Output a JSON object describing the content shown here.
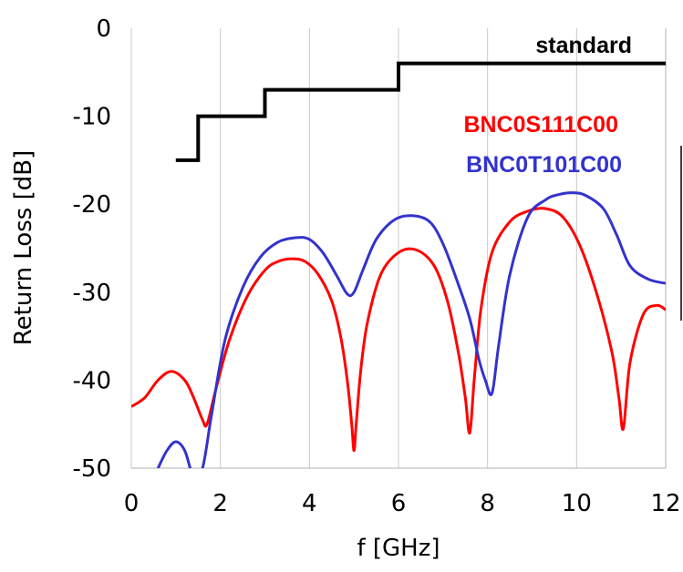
{
  "chart_data": {
    "type": "line",
    "xlabel": "f [GHz]",
    "ylabel": "Return Loss [dB]",
    "xlim": [
      0,
      12
    ],
    "ylim": [
      -50,
      0
    ],
    "x_ticks": [
      "0",
      "2",
      "4",
      "6",
      "8",
      "10",
      "12"
    ],
    "y_ticks": [
      "0",
      "-10",
      "-20",
      "-30",
      "-40",
      "-50"
    ],
    "grid": "vertical",
    "series": [
      {
        "name": "standard",
        "color": "#000000",
        "step": true,
        "x": [
          1.0,
          1.5,
          1.5,
          3.0,
          3.0,
          6.0,
          6.0,
          12.0
        ],
        "y": [
          -15,
          -15,
          -10,
          -10,
          -7,
          -7,
          -4,
          -4
        ]
      },
      {
        "name": "BNC0S111C00",
        "color": "#ff0000",
        "x": [
          0.0,
          0.3,
          0.6,
          0.9,
          1.2,
          1.4,
          1.6,
          1.7,
          1.9,
          2.2,
          2.6,
          3.0,
          3.3,
          3.6,
          3.9,
          4.2,
          4.5,
          4.7,
          4.85,
          4.95,
          5.0,
          5.05,
          5.15,
          5.3,
          5.6,
          6.0,
          6.4,
          6.8,
          7.1,
          7.35,
          7.5,
          7.6,
          7.7,
          7.85,
          8.1,
          8.5,
          8.9,
          9.3,
          9.7,
          10.1,
          10.5,
          10.8,
          10.95,
          11.05,
          11.2,
          11.5,
          11.8,
          12.0
        ],
        "y": [
          -43.0,
          -42.0,
          -40.0,
          -39.0,
          -40.0,
          -42.0,
          -44.5,
          -45.0,
          -41.0,
          -35.5,
          -30.5,
          -27.5,
          -26.5,
          -26.2,
          -26.5,
          -28.0,
          -31.0,
          -35.0,
          -40.0,
          -45.0,
          -48.0,
          -45.0,
          -39.0,
          -33.5,
          -28.0,
          -25.5,
          -25.2,
          -27.0,
          -31.0,
          -37.0,
          -42.0,
          -46.0,
          -40.0,
          -32.0,
          -25.5,
          -22.0,
          -20.8,
          -20.5,
          -21.5,
          -25.0,
          -31.0,
          -37.0,
          -42.0,
          -45.5,
          -38.0,
          -32.5,
          -31.5,
          -32.0
        ]
      },
      {
        "name": "BNC0T101C00",
        "color": "#3333cc",
        "x": [
          0.6,
          0.8,
          1.0,
          1.2,
          1.4,
          1.6,
          1.8,
          2.1,
          2.5,
          2.9,
          3.3,
          3.7,
          4.0,
          4.3,
          4.6,
          4.85,
          5.0,
          5.2,
          5.5,
          5.9,
          6.3,
          6.7,
          7.0,
          7.3,
          7.6,
          7.8,
          7.95,
          8.1,
          8.25,
          8.5,
          8.9,
          9.3,
          9.6,
          9.9,
          10.2,
          10.6,
          10.9,
          11.2,
          11.6,
          12.0
        ],
        "y": [
          -50.0,
          -48.0,
          -47.0,
          -48.0,
          -51.0,
          -50.0,
          -44.0,
          -35.5,
          -29.5,
          -26.0,
          -24.3,
          -23.8,
          -24.0,
          -25.5,
          -28.0,
          -30.2,
          -30.0,
          -27.5,
          -24.0,
          -21.8,
          -21.3,
          -22.0,
          -24.5,
          -28.5,
          -33.0,
          -37.5,
          -40.0,
          -41.5,
          -36.0,
          -28.0,
          -21.5,
          -19.5,
          -18.9,
          -18.7,
          -19.0,
          -20.5,
          -23.5,
          -27.0,
          -28.5,
          -29.0
        ]
      }
    ]
  }
}
